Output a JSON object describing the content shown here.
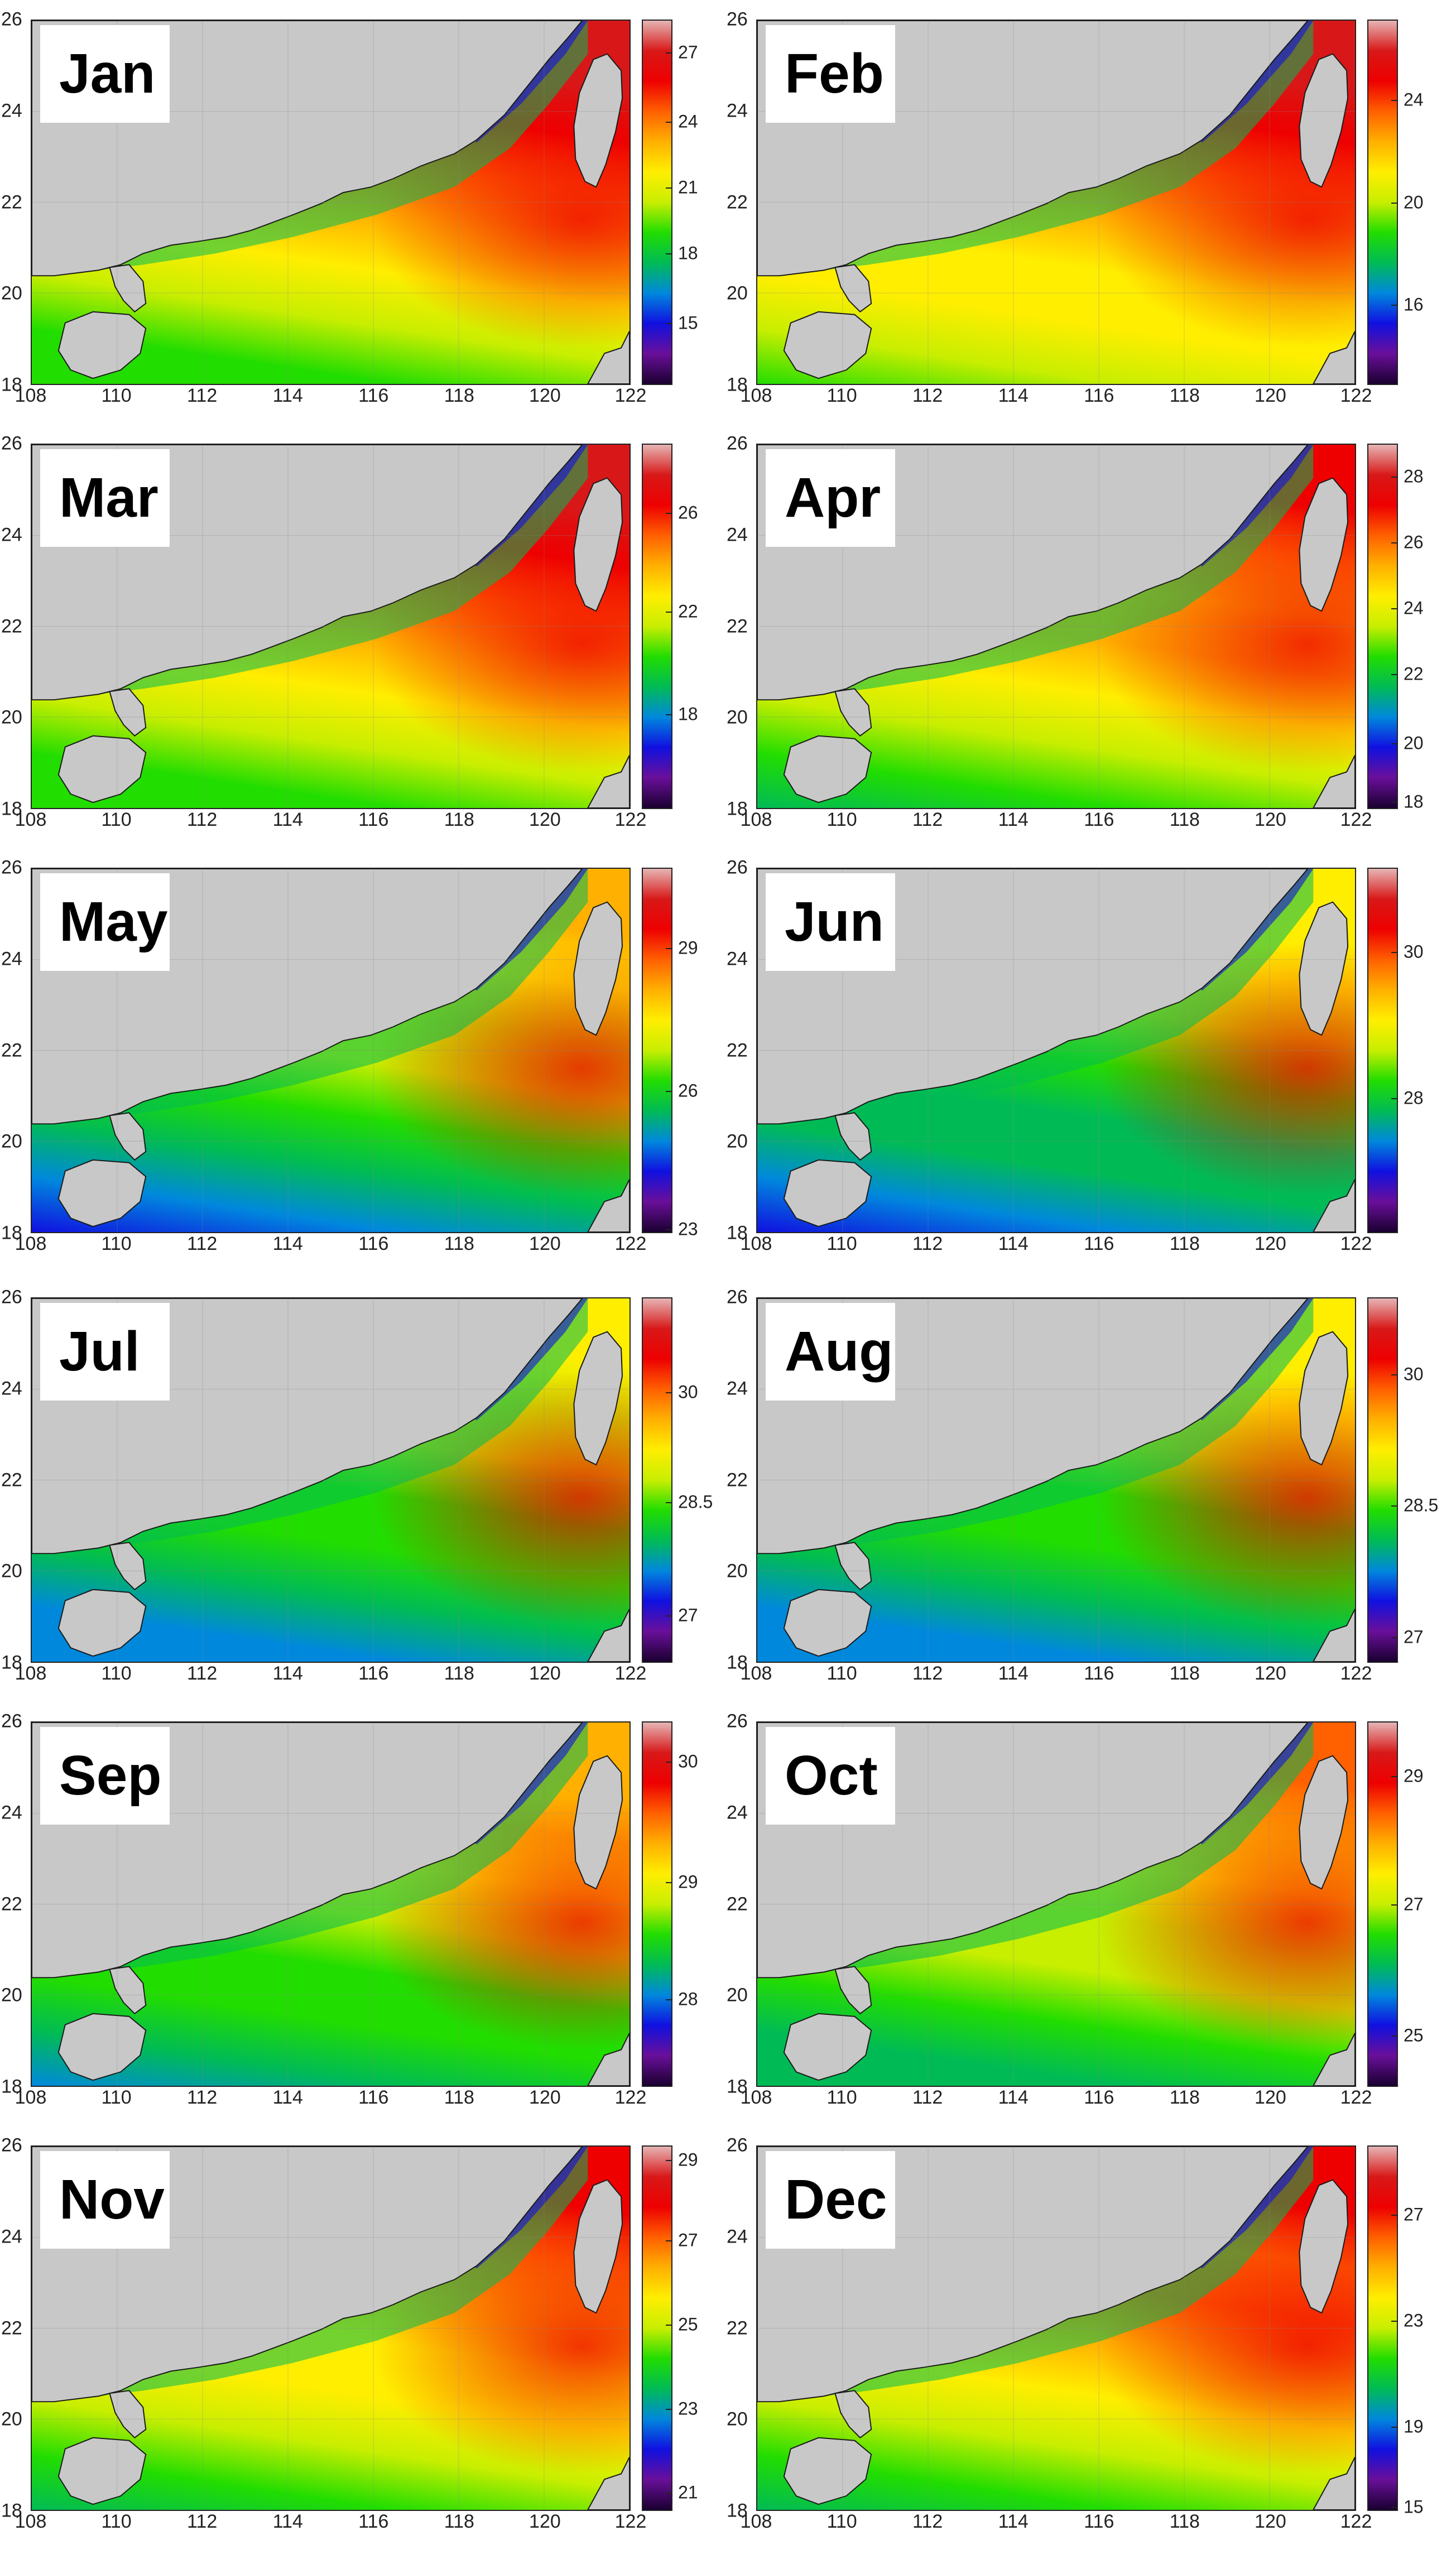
{
  "colors": {
    "land": "#c8c8c8",
    "coast": "#1a1a1a",
    "scale": [
      "#1a0030",
      "#6a0f9a",
      "#1010e0",
      "#0088dd",
      "#00bb55",
      "#22dd00",
      "#c8ee00",
      "#ffee00",
      "#ffb000",
      "#ff6000",
      "#ee0000",
      "#d81818",
      "#e6b4b4"
    ]
  },
  "x_ticks": [
    "108",
    "110",
    "112",
    "114",
    "116",
    "118",
    "120",
    "122"
  ],
  "y_ticks": [
    "26",
    "24",
    "22",
    "20",
    "18"
  ],
  "panels": [
    {
      "month": "Jan",
      "colorbar": [
        "27",
        "24",
        "21",
        "18",
        "15"
      ],
      "cb_pos": [
        0.09,
        0.28,
        0.46,
        0.64,
        0.83
      ],
      "warm_south": 0.62,
      "cold_north": 0.12
    },
    {
      "month": "Feb",
      "colorbar": [
        "24",
        "20",
        "16"
      ],
      "cb_pos": [
        0.22,
        0.5,
        0.78
      ],
      "warm_south": 0.6,
      "cold_north": 0.1
    },
    {
      "month": "Mar",
      "colorbar": [
        "26",
        "22",
        "18"
      ],
      "cb_pos": [
        0.19,
        0.46,
        0.74
      ],
      "warm_south": 0.62,
      "cold_north": 0.12
    },
    {
      "month": "Apr",
      "colorbar": [
        "28",
        "26",
        "24",
        "22",
        "20",
        "18"
      ],
      "cb_pos": [
        0.09,
        0.27,
        0.45,
        0.63,
        0.82,
        0.98
      ],
      "warm_south": 0.66,
      "cold_north": 0.15
    },
    {
      "month": "May",
      "colorbar": [
        "29",
        "26",
        "23"
      ],
      "cb_pos": [
        0.22,
        0.61,
        0.99
      ],
      "warm_south": 0.82,
      "cold_north": 0.32
    },
    {
      "month": "Jun",
      "colorbar": [
        "30",
        "28"
      ],
      "cb_pos": [
        0.23,
        0.63
      ],
      "warm_south": 0.82,
      "cold_north": 0.38
    },
    {
      "month": "Jul",
      "colorbar": [
        "30",
        "28.5",
        "27"
      ],
      "cb_pos": [
        0.26,
        0.56,
        0.87
      ],
      "warm_south": 0.76,
      "cold_north": 0.42
    },
    {
      "month": "Aug",
      "colorbar": [
        "30",
        "28.5",
        "27"
      ],
      "cb_pos": [
        0.21,
        0.57,
        0.93
      ],
      "warm_south": 0.78,
      "cold_north": 0.4
    },
    {
      "month": "Sep",
      "colorbar": [
        "30",
        "29",
        "28"
      ],
      "cb_pos": [
        0.11,
        0.44,
        0.76
      ],
      "warm_south": 0.74,
      "cold_north": 0.3
    },
    {
      "month": "Oct",
      "colorbar": [
        "29",
        "27",
        "25"
      ],
      "cb_pos": [
        0.15,
        0.5,
        0.86
      ],
      "warm_south": 0.7,
      "cold_north": 0.28
    },
    {
      "month": "Nov",
      "colorbar": [
        "29",
        "27",
        "25",
        "23",
        "21"
      ],
      "cb_pos": [
        0.04,
        0.26,
        0.49,
        0.72,
        0.95
      ],
      "warm_south": 0.66,
      "cold_north": 0.18
    },
    {
      "month": "Dec",
      "colorbar": [
        "27",
        "23",
        "19",
        "15"
      ],
      "cb_pos": [
        0.19,
        0.48,
        0.77,
        0.99
      ],
      "warm_south": 0.64,
      "cold_north": 0.14
    }
  ]
}
